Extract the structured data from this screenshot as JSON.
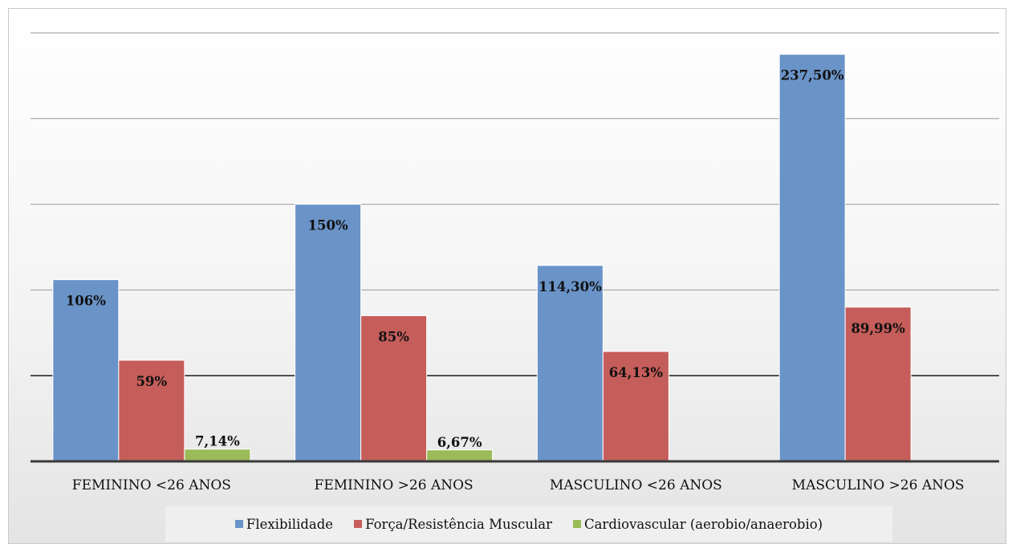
{
  "chart_data": {
    "type": "bar",
    "title": "",
    "categories": [
      "FEMININO <26 ANOS",
      "FEMININO >26 ANOS",
      "MASCULINO <26 ANOS",
      "MASCULINO >26 ANOS"
    ],
    "series": [
      {
        "name": "Flexibilidade",
        "color": "#6a93c8",
        "values": [
          106,
          150,
          114.3,
          237.5
        ],
        "labels": [
          "106%",
          "150%",
          "114,30%",
          "237,50%"
        ]
      },
      {
        "name": "Força/Resistência Muscular",
        "color": "#c55d5a",
        "values": [
          59,
          85,
          64.13,
          89.99
        ],
        "labels": [
          "59%",
          "85%",
          "64,13%",
          "89,99%"
        ]
      },
      {
        "name": "Cardiovascular (aerobio/anaerobio)",
        "color": "#9bbb59",
        "values": [
          7.14,
          6.67,
          null,
          null
        ],
        "labels": [
          "7,14%",
          "6,67%",
          "",
          ""
        ]
      }
    ],
    "ylim": [
      0,
      250
    ],
    "gridlines": [
      50,
      100,
      150,
      200,
      250
    ],
    "grid": true,
    "legend_position": "bottom"
  }
}
